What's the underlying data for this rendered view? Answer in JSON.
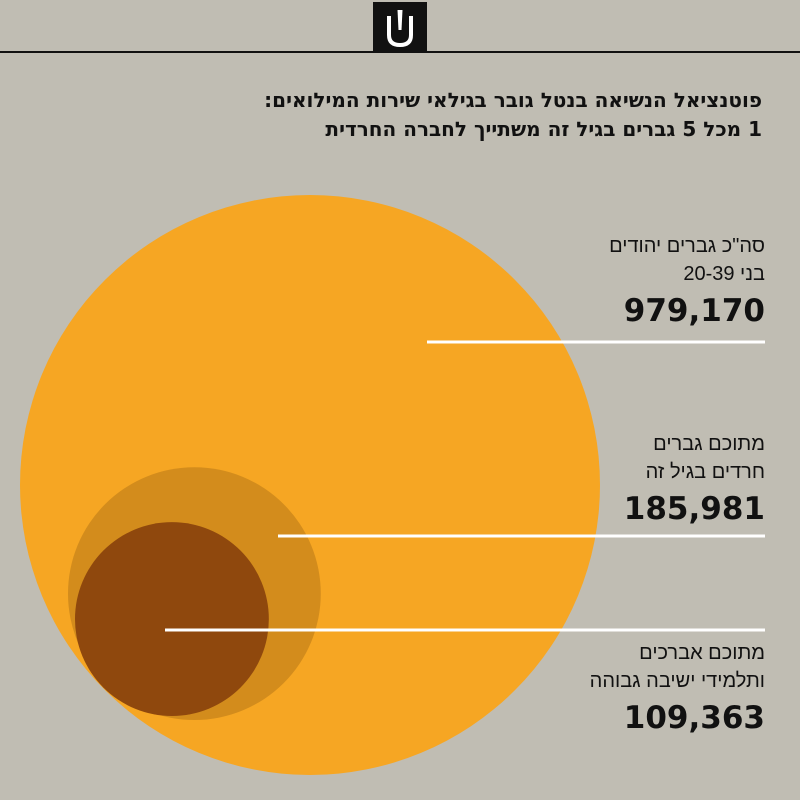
{
  "title": {
    "line1": "פוטנציאל הנשיאה בנטל גובר בגילאי שירות המילואים:",
    "line2": "1 מכל 5 גברים בגיל זה משתייך לחברה החרדית"
  },
  "colors": {
    "background": "#c0bdb3",
    "total": "#f6a623",
    "haredi": "#d38c1c",
    "yeshiva": "#8f480d",
    "leader": "#ffffff",
    "logo": "#111111"
  },
  "logo_icon": "brand-logo-icon",
  "chart_data": {
    "type": "proportional-area",
    "series": [
      {
        "key": "total",
        "label_lines": [
          "סה\"כ גברים יהודים",
          "בני 20-39"
        ],
        "value": 979170,
        "display": "979,170"
      },
      {
        "key": "haredi",
        "label_lines": [
          "מתוכם גברים",
          "חרדים בגיל זה"
        ],
        "value": 185981,
        "display": "185,981"
      },
      {
        "key": "yeshiva",
        "label_lines": [
          "מתוכם אברכים",
          "ותלמידי ישיבה גבוהה"
        ],
        "value": 109363,
        "display": "109,363"
      }
    ]
  }
}
